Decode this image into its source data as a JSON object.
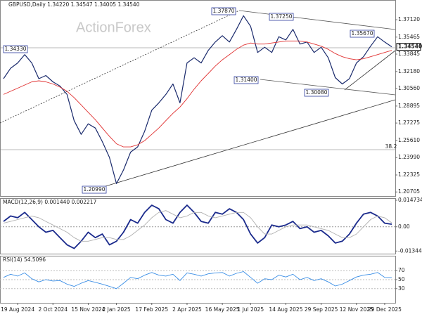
{
  "chart_data": [
    {
      "type": "line",
      "title": "GBPUSD,Daily  1.34220 1.34547 1.34005 1.34540",
      "watermark": "ActionForex",
      "categories": [
        null,
        null,
        "19 Aug 2024",
        null,
        null,
        null,
        null,
        "2 Oct 2024",
        null,
        null,
        null,
        null,
        "15 Nov 2024",
        null,
        null,
        null,
        "2 Jan 2025",
        null,
        null,
        null,
        null,
        "17 Feb 2025",
        null,
        null,
        null,
        null,
        "2 Apr 2025",
        null,
        null,
        null,
        null,
        "16 May 2025",
        null,
        null,
        null,
        "1 Jul 2025",
        null,
        null,
        null,
        null,
        "14 Aug 2025",
        null,
        null,
        null,
        null,
        "29 Sep 2025",
        null,
        null,
        null,
        null,
        "12 Nov 2025",
        null,
        null,
        null,
        "29 Dec 2025",
        null
      ],
      "series": [
        {
          "name": "GBPUSD",
          "color": "#1a2a6c",
          "values": [
            1.315,
            1.325,
            1.33,
            1.338,
            1.33,
            1.315,
            1.318,
            1.312,
            1.308,
            1.3,
            1.275,
            1.262,
            1.272,
            1.268,
            1.255,
            1.24,
            1.215,
            1.228,
            1.245,
            1.25,
            1.265,
            1.285,
            1.292,
            1.3,
            1.31,
            1.292,
            1.33,
            1.335,
            1.33,
            1.342,
            1.35,
            1.356,
            1.35,
            1.362,
            1.375,
            1.365,
            1.34,
            1.345,
            1.34,
            1.355,
            1.352,
            1.362,
            1.348,
            1.35,
            1.34,
            1.345,
            1.335,
            1.316,
            1.31,
            1.315,
            1.33,
            1.336,
            1.346,
            1.355,
            1.35,
            1.3454
          ]
        },
        {
          "name": "MA",
          "color": "#e03030",
          "values": [
            1.3,
            1.303,
            1.306,
            1.309,
            1.312,
            1.313,
            1.312,
            1.31,
            1.307,
            1.303,
            1.297,
            1.29,
            1.283,
            1.276,
            1.268,
            1.26,
            1.253,
            1.25,
            1.25,
            1.252,
            1.256,
            1.262,
            1.268,
            1.275,
            1.282,
            1.288,
            1.296,
            1.305,
            1.313,
            1.32,
            1.327,
            1.333,
            1.338,
            1.343,
            1.347,
            1.349,
            1.348,
            1.348,
            1.349,
            1.35,
            1.351,
            1.351,
            1.351,
            1.35,
            1.348,
            1.346,
            1.343,
            1.339,
            1.336,
            1.334,
            1.333,
            1.334,
            1.336,
            1.338,
            1.34,
            1.342
          ]
        }
      ],
      "ylim": [
        1.2025,
        1.386
      ],
      "yticks": [
        {
          "value": 1.3712,
          "label": "1.37120"
        },
        1.35465,
        1.33845,
        {
          "value": 1.3218,
          "label": "1.32180"
        },
        {
          "value": 1.3056,
          "label": "1.30560"
        },
        1.28895,
        1.27275,
        {
          "value": 1.2561,
          "label": "1.25610"
        },
        {
          "value": 1.2399,
          "label": "1.23990"
        },
        1.22325,
        1.20705
      ],
      "last_price": {
        "value": 1.3454,
        "label": "1.34540"
      },
      "annotations": [
        "1.37870",
        "1.37250",
        "1.35670",
        "1.34330",
        "1.31400",
        "1.30080",
        "1.20990",
        "38.2"
      ]
    },
    {
      "type": "line",
      "title": "MACD(12,26,9) 0.001440 0.002217",
      "series": [
        {
          "name": "MACD",
          "color": "#1a2a8c",
          "values": [
            0.003,
            0.006,
            0.005,
            0.008,
            0.004,
            0.0,
            -0.003,
            -0.002,
            -0.006,
            -0.01,
            -0.012,
            -0.008,
            -0.003,
            -0.006,
            -0.004,
            -0.01,
            -0.008,
            -0.003,
            0.004,
            0.002,
            0.008,
            0.012,
            0.01,
            0.004,
            0.002,
            0.008,
            0.012,
            0.008,
            0.003,
            0.002,
            0.008,
            0.007,
            0.01,
            0.008,
            0.004,
            -0.004,
            -0.009,
            -0.006,
            0.001,
            0.0,
            0.001,
            0.003,
            -0.001,
            0.0,
            -0.003,
            -0.002,
            -0.005,
            -0.009,
            -0.008,
            -0.004,
            0.002,
            0.007,
            0.008,
            0.006,
            0.002,
            0.00144
          ]
        },
        {
          "name": "Signal",
          "color": "#b0b0b0",
          "values": [
            0.002,
            0.003,
            0.004,
            0.005,
            0.006,
            0.005,
            0.003,
            0.001,
            -0.001,
            -0.003,
            -0.006,
            -0.008,
            -0.008,
            -0.007,
            -0.006,
            -0.006,
            -0.007,
            -0.007,
            -0.005,
            -0.002,
            0.001,
            0.005,
            0.008,
            0.009,
            0.007,
            0.005,
            0.006,
            0.008,
            0.008,
            0.006,
            0.005,
            0.006,
            0.007,
            0.008,
            0.008,
            0.005,
            0.0,
            -0.004,
            -0.004,
            -0.002,
            0.0,
            0.001,
            0.001,
            0.001,
            0.0,
            -0.001,
            -0.002,
            -0.004,
            -0.006,
            -0.006,
            -0.004,
            0.0,
            0.004,
            0.006,
            0.005,
            0.002217
          ]
        }
      ],
      "ylim": [
        -0.0145,
        0.0155
      ],
      "yticks": [
        0.014734,
        {
          "value": 0,
          "label": "0.00"
        },
        -0.013442
      ]
    },
    {
      "type": "line",
      "title": "RSI(14) 54.5096",
      "series": [
        {
          "name": "RSI",
          "color": "#3a8ee6",
          "values": [
            55,
            62,
            58,
            65,
            52,
            45,
            50,
            47,
            48,
            40,
            35,
            42,
            48,
            44,
            40,
            35,
            30,
            42,
            55,
            52,
            60,
            66,
            60,
            58,
            62,
            48,
            65,
            62,
            58,
            63,
            65,
            66,
            58,
            64,
            68,
            55,
            42,
            52,
            50,
            60,
            56,
            62,
            50,
            55,
            48,
            52,
            45,
            36,
            40,
            48,
            56,
            60,
            62,
            66,
            55,
            54.5096
          ]
        }
      ],
      "ylim": [
        0,
        100
      ],
      "yticks": [
        30,
        50,
        70
      ]
    }
  ]
}
